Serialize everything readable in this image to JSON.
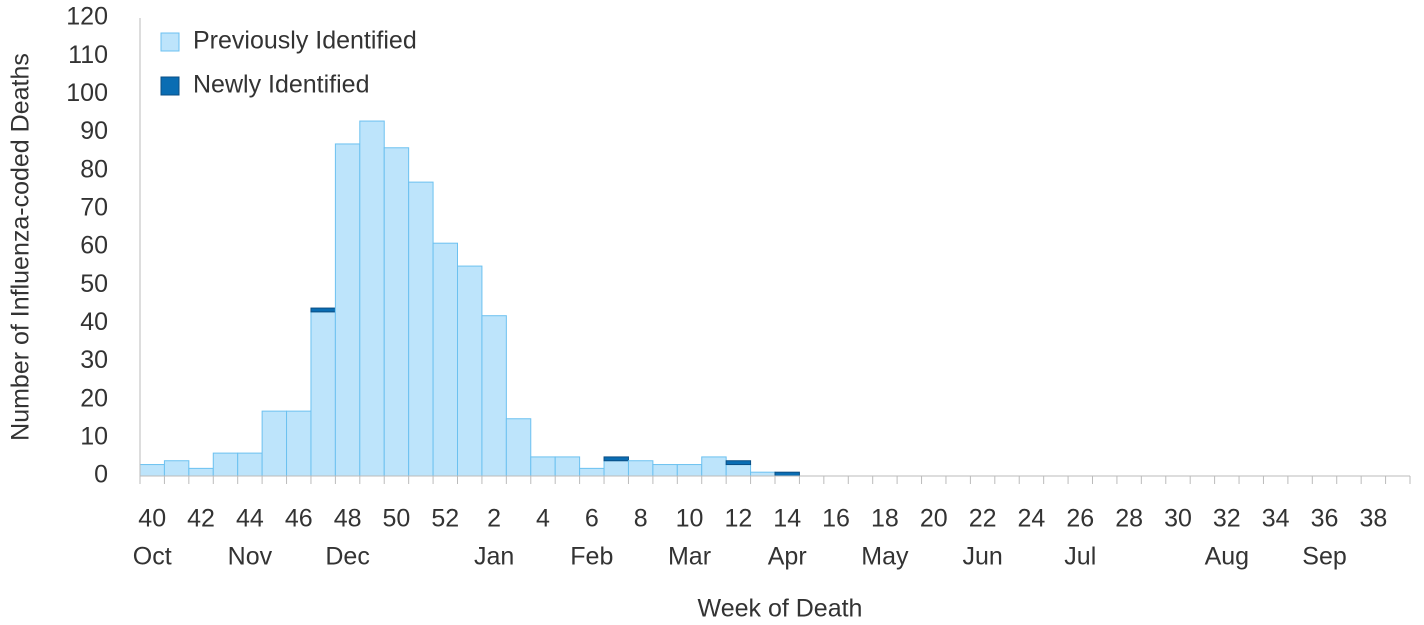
{
  "chart_data": {
    "type": "stacked_bar",
    "xlabel": "Week of Death",
    "ylabel": "Number of Influenza-coded Deaths",
    "categories": [
      40,
      null,
      42,
      null,
      44,
      null,
      46,
      null,
      48,
      null,
      50,
      null,
      52,
      null,
      2,
      null,
      4,
      null,
      6,
      null,
      8,
      null,
      10,
      null,
      12,
      null,
      14,
      null,
      16,
      null,
      18,
      null,
      20,
      null,
      22,
      null,
      24,
      null,
      26,
      null,
      28,
      null,
      30,
      null,
      32,
      null,
      34,
      null,
      36,
      null,
      38,
      null
    ],
    "month_categories": [
      "Oct",
      null,
      null,
      null,
      "Nov",
      null,
      null,
      null,
      "Dec",
      null,
      null,
      null,
      null,
      null,
      "Jan",
      null,
      null,
      null,
      "Feb",
      null,
      null,
      null,
      "Mar",
      null,
      null,
      null,
      "Apr",
      null,
      null,
      null,
      "May",
      null,
      null,
      null,
      "Jun",
      null,
      null,
      null,
      "Jul",
      null,
      null,
      null,
      null,
      null,
      "Aug",
      null,
      null,
      null,
      "Sep",
      null,
      null,
      null
    ],
    "series": [
      {
        "name": "Previously Identified",
        "color": "#bde4fb",
        "values": [
          3,
          4,
          2,
          6,
          6,
          17,
          17,
          43,
          87,
          93,
          86,
          77,
          61,
          55,
          42,
          15,
          5,
          5,
          2,
          4,
          4,
          3,
          3,
          5,
          3,
          1,
          0,
          0,
          0,
          0,
          0,
          0,
          0,
          0,
          0,
          0,
          0,
          0,
          0,
          0,
          0,
          0,
          0,
          0,
          0,
          0,
          0,
          0,
          0,
          0,
          0,
          0
        ]
      },
      {
        "name": "Newly Identified",
        "color": "#0a6db3",
        "values": [
          0,
          0,
          0,
          0,
          0,
          0,
          0,
          1,
          0,
          0,
          0,
          0,
          0,
          0,
          0,
          0,
          0,
          0,
          0,
          1,
          0,
          0,
          0,
          0,
          1,
          0,
          1,
          0,
          0,
          0,
          0,
          0,
          0,
          0,
          0,
          0,
          0,
          0,
          0,
          0,
          0,
          0,
          0,
          0,
          0,
          0,
          0,
          0,
          0,
          0,
          0,
          0
        ]
      }
    ],
    "ylim": [
      0,
      120
    ],
    "yticks": [
      0,
      10,
      20,
      30,
      40,
      50,
      60,
      70,
      80,
      90,
      100,
      110,
      120
    ],
    "grid": false,
    "legend": "upper-left"
  }
}
